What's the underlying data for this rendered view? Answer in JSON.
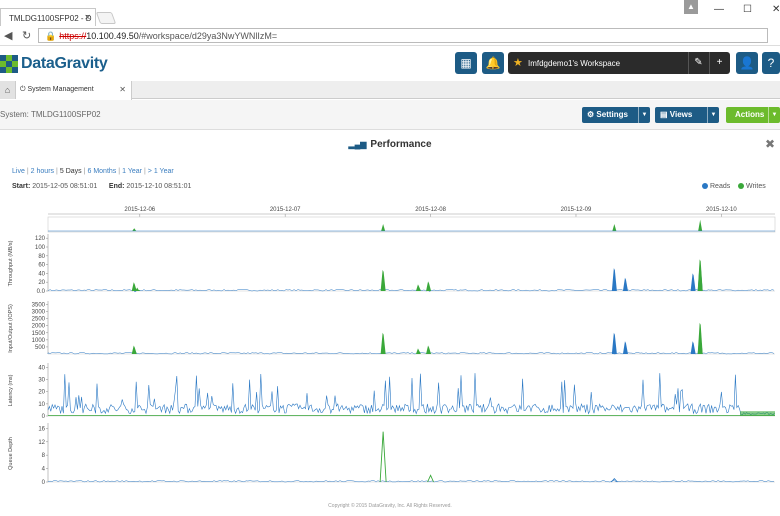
{
  "browser": {
    "tab_title": "TMLDG1100SFP02 - D",
    "url_proto": "https://",
    "url_host": "10.100.49.50",
    "url_path": "/#workspace/d29ya3NwYWNlIzM="
  },
  "app": {
    "logo_text": "DataGravity",
    "workspace_title": "Imfdgdemo1's Workspace",
    "tab_label": "System Management",
    "system_label": "System: TMLDG1100SFP02",
    "buttons": {
      "settings": "Settings",
      "views": "Views",
      "actions": "Actions"
    },
    "colors": {
      "primary": "#1d5b85",
      "actions": "#6cbb2c",
      "reads": "#2a78c4",
      "writes": "#3aa83a"
    }
  },
  "icons": [
    "grid-icon",
    "bell-icon",
    "star-icon",
    "pencil-icon",
    "plus-icon",
    "user-icon",
    "help-icon",
    "home-icon",
    "power-icon",
    "gear-icon",
    "bar-chart-icon",
    "close-icon"
  ],
  "panel": {
    "title": "Performance",
    "ranges": [
      {
        "label": "Live",
        "selected": false
      },
      {
        "label": "2 hours",
        "selected": false
      },
      {
        "label": "5 Days",
        "selected": true
      },
      {
        "label": "6 Months",
        "selected": false
      },
      {
        "label": "1 Year",
        "selected": false
      },
      {
        "label": "> 1 Year",
        "selected": false
      }
    ],
    "start_label": "Start:",
    "start_value": "2015-12-05 08:51:01",
    "end_label": "End:",
    "end_value": "2015-12-10 08:51:01",
    "legend_reads": "Reads",
    "legend_writes": "Writes"
  },
  "chart_data": {
    "type": "area",
    "x_ticks": [
      "2015-12-06",
      "2015-12-07",
      "2015-12-08",
      "2015-12-09",
      "2015-12-10"
    ],
    "x_range": [
      "2015-12-05 08:51:01",
      "2015-12-10 08:51:01"
    ],
    "panels": [
      {
        "ylabel": "Throughput (MB/s)",
        "yticks": [
          0.0,
          20,
          40,
          60,
          80,
          100,
          120
        ],
        "ylim": [
          0,
          125
        ],
        "series": [
          {
            "name": "Reads",
            "peaks": [
              [
                "2015-12-05 23:05",
                2
              ],
              [
                "2015-12-07 16:10",
                5
              ],
              [
                "2015-12-07 23:40",
                3
              ],
              [
                "2015-12-09 06:20",
                52
              ],
              [
                "2015-12-09 08:10",
                30
              ],
              [
                "2015-12-09 19:20",
                40
              ],
              [
                "2015-12-09 20:30",
                62
              ]
            ]
          },
          {
            "name": "Writes",
            "peaks": [
              [
                "2015-12-05 23:05",
                20
              ],
              [
                "2015-12-05 23:40",
                8
              ],
              [
                "2015-12-07 16:10",
                48
              ],
              [
                "2015-12-07 22:00",
                15
              ],
              [
                "2015-12-07 23:40",
                22
              ],
              [
                "2015-12-09 20:30",
                72
              ]
            ]
          }
        ]
      },
      {
        "ylabel": "Input/Output (IOPS)",
        "yticks": [
          500,
          1000,
          1500,
          2000,
          2500,
          3000,
          3500
        ],
        "ylim": [
          0,
          3600
        ],
        "series": [
          {
            "name": "Reads",
            "peaks": [
              [
                "2015-12-09 06:20",
                1500
              ],
              [
                "2015-12-09 08:10",
                900
              ],
              [
                "2015-12-09 19:20",
                900
              ],
              [
                "2015-12-09 20:30",
                1500
              ]
            ]
          },
          {
            "name": "Writes",
            "peaks": [
              [
                "2015-12-05 23:05",
                600
              ],
              [
                "2015-12-07 16:10",
                1500
              ],
              [
                "2015-12-07 22:00",
                400
              ],
              [
                "2015-12-07 23:40",
                600
              ],
              [
                "2015-12-09 20:30",
                2200
              ]
            ]
          }
        ]
      },
      {
        "ylabel": "Latency (ms)",
        "yticks": [
          0,
          10,
          20,
          30,
          40
        ],
        "ylim": [
          0,
          42
        ],
        "series": [
          {
            "name": "Reads",
            "typical_range": [
              2,
              36
            ]
          },
          {
            "name": "Writes",
            "typical_range": [
              0,
              4
            ]
          }
        ]
      },
      {
        "ylabel": "Queue Depth",
        "yticks": [
          0,
          4,
          8,
          12,
          16
        ],
        "ylim": [
          0,
          17
        ],
        "series": [
          {
            "name": "Writes",
            "peaks": [
              [
                "2015-12-07 16:10",
                15
              ],
              [
                "2015-12-08 00:00",
                2
              ]
            ]
          },
          {
            "name": "Reads",
            "peaks": [
              [
                "2015-12-09 06:20",
                1
              ]
            ]
          }
        ]
      }
    ],
    "overview_peaks": [
      [
        "2015-12-05 23:05",
        0.2
      ],
      [
        "2015-12-07 16:10",
        0.5
      ],
      [
        "2015-12-09 06:20",
        0.5
      ],
      [
        "2015-12-09 20:30",
        0.8
      ]
    ]
  },
  "footer": "Copyright © 2015 DataGravity, Inc. All Rights Reserved."
}
